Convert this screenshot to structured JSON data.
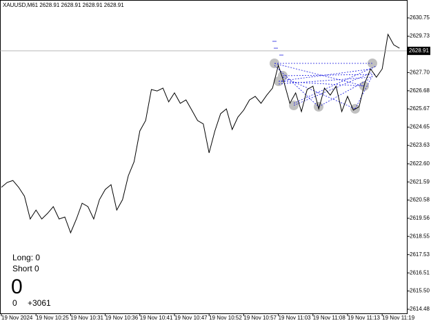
{
  "chart_data": {
    "type": "line",
    "header": "XAUUSD,M61  2628.91 2628.91 2628.91 2628.91",
    "categories": [
      "19 Nov 2024",
      null,
      null,
      null,
      null,
      null,
      "19 Nov 10:25",
      null,
      null,
      null,
      null,
      null,
      "19 Nov 10:31",
      null,
      null,
      null,
      null,
      null,
      "19 Nov 10:36",
      null,
      null,
      null,
      null,
      null,
      "19 Nov 10:41",
      null,
      null,
      null,
      null,
      null,
      "19 Nov 10:47",
      null,
      null,
      null,
      null,
      null,
      "19 Nov 10:52",
      null,
      null,
      null,
      null,
      null,
      "19 Nov 10:57",
      null,
      null,
      null,
      null,
      null,
      "19 Nov 11:03",
      null,
      null,
      null,
      null,
      null,
      "19 Nov 11:08",
      null,
      null,
      null,
      null,
      null,
      "19 Nov 11:13",
      null,
      null,
      null,
      null,
      null,
      "19 Nov 11:19",
      null,
      null,
      null
    ],
    "values": [
      2621.29,
      2621.56,
      2621.67,
      2621.29,
      2620.79,
      2619.52,
      2620.02,
      2619.52,
      2619.83,
      2620.21,
      2619.52,
      2619.63,
      2618.75,
      2619.52,
      2620.4,
      2620.21,
      2619.52,
      2620.6,
      2621.17,
      2621.44,
      2620.02,
      2620.6,
      2621.94,
      2622.71,
      2624.44,
      2625.02,
      2626.75,
      2626.67,
      2626.83,
      2626.06,
      2626.56,
      2625.98,
      2626.17,
      2625.6,
      2625.02,
      2624.83,
      2623.21,
      2624.44,
      2625.4,
      2625.67,
      2624.52,
      2625.21,
      2625.6,
      2626.17,
      2626.37,
      2625.98,
      2626.44,
      2626.83,
      2628.1,
      2627.13,
      2625.98,
      2626.56,
      2625.52,
      2626.75,
      2626.94,
      2625.67,
      2626.83,
      2626.44,
      2626.94,
      2625.52,
      2626.37,
      2625.6,
      2625.79,
      2627.13,
      2627.9,
      2627.44,
      2627.9,
      2629.83,
      2629.25,
      2629.06
    ],
    "color": "#000000",
    "ylim": [
      2614.25,
      2631.75
    ],
    "yticks": [
      2630.75,
      2629.73,
      {
        "value": 2627.7,
        "label": "2627.70"
      },
      2626.68,
      2625.67,
      2624.65,
      2623.63,
      {
        "value": 2622.6,
        "label": "2622.60"
      },
      2621.59,
      2620.58,
      2619.56,
      2618.55,
      2617.53,
      2616.51,
      {
        "value": 2615.5,
        "label": "2615.50"
      },
      2614.48
    ],
    "current_price": 2628.91,
    "overlay": {
      "long": "Long: 0",
      "short": "Short 0",
      "big": "0",
      "left": "0",
      "right": "+3061"
    }
  }
}
